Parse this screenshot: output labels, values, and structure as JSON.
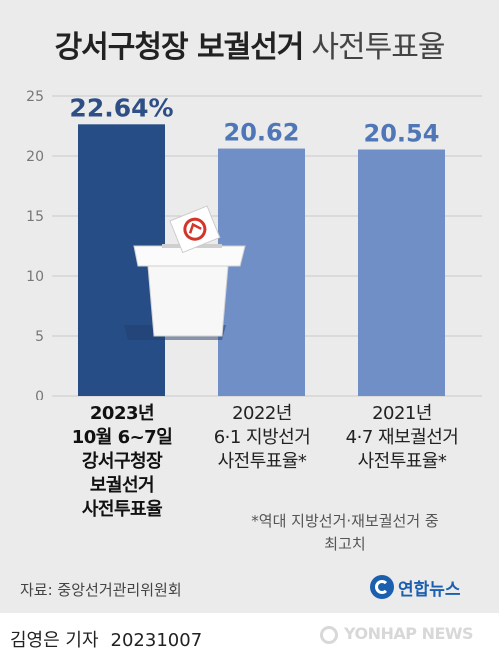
{
  "title": {
    "main": "강서구청장 보궐선거",
    "sub": "사전투표율"
  },
  "chart_data": {
    "type": "bar",
    "categories": [
      [
        "2023년",
        "10월 6~7일",
        "강서구청장",
        "보궐선거",
        "사전투표율"
      ],
      [
        "2022년",
        "6·1 지방선거",
        "사전투표율*"
      ],
      [
        "2021년",
        "4·7 재보궐선거",
        "사전투표율*"
      ]
    ],
    "values": [
      22.64,
      20.62,
      20.54
    ],
    "value_labels": [
      "22.64%",
      "20.62",
      "20.54"
    ],
    "ylim": [
      0,
      25
    ],
    "yticks": [
      "0",
      "5",
      "10",
      "15",
      "20",
      "25"
    ],
    "grid": true,
    "colors": {
      "highlight": "#264d86",
      "normal": "#6f8fc6",
      "highlight_label": "#2d4f86",
      "normal_label": "#4f77b8",
      "grid": "#c9c9c9",
      "tick": "#777777"
    }
  },
  "footnote": [
    "*역대 지방선거·재보궐선거 중",
    "최고치"
  ],
  "source": "자료: 중앙선거관리위원회",
  "logo": "연합뉴스",
  "byline": {
    "reporter": "김영은 기자",
    "date": "20231007"
  },
  "watermark": "YONHAP NEWS"
}
